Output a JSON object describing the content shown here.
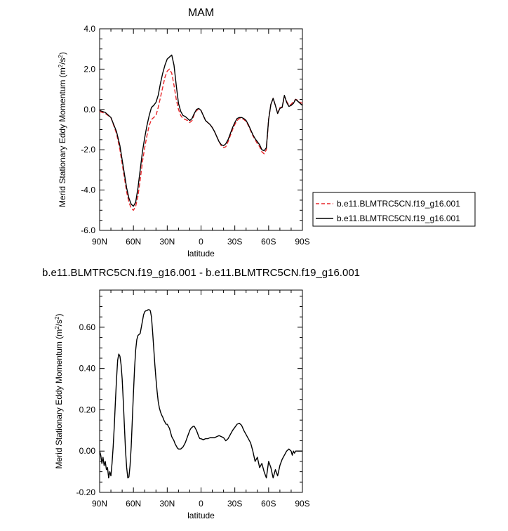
{
  "chart_data": [
    {
      "type": "line",
      "title": "MAM",
      "xlabel": "latitude",
      "ylabel": "Merid Stationary Eddy Momentum (m²/s²)",
      "ylabel_parts": {
        "main": "Merid Stationary Eddy Momentum (m",
        "sup1": "2",
        "mid": "/s",
        "sup2": "2",
        "end": ")"
      },
      "xlim": [
        -90,
        90
      ],
      "ylim": [
        -6,
        4
      ],
      "x_ticks": [
        -90,
        -60,
        -30,
        0,
        30,
        60,
        90
      ],
      "x_tick_labels": [
        "90N",
        "60N",
        "30N",
        "0",
        "30S",
        "60S",
        "90S"
      ],
      "y_ticks": [
        -6,
        -4,
        -2,
        0,
        2,
        4
      ],
      "y_tick_labels": [
        "-6.0",
        "-4.0",
        "-2.0",
        "0.0",
        "2.0",
        "4.0"
      ],
      "legend_position": "right",
      "series": [
        {
          "name": "b.e11.BLMTRC5CN.f19_g16.001",
          "color": "#e8262a",
          "dash": "dashed",
          "x": [
            -90,
            -85,
            -80,
            -75,
            -72,
            -70,
            -68,
            -66,
            -64,
            -62,
            -60,
            -58,
            -56,
            -54,
            -52,
            -50,
            -48,
            -46,
            -44,
            -42,
            -40,
            -38,
            -36,
            -34,
            -32,
            -30,
            -28,
            -26,
            -24,
            -22,
            -20,
            -18,
            -16,
            -14,
            -12,
            -10,
            -8,
            -6,
            -4,
            -2,
            0,
            2,
            4,
            6,
            8,
            10,
            12,
            14,
            16,
            18,
            20,
            22,
            24,
            26,
            28,
            30,
            32,
            34,
            36,
            38,
            40,
            42,
            44,
            46,
            48,
            50,
            52,
            54,
            56,
            58,
            60,
            62,
            64,
            66,
            68,
            70,
            72,
            74,
            76,
            78,
            80,
            82,
            84,
            86,
            88,
            90
          ],
          "y": [
            -0.1,
            -0.2,
            -0.4,
            -1.2,
            -2.0,
            -2.7,
            -3.4,
            -4.1,
            -4.6,
            -4.9,
            -5.0,
            -4.8,
            -4.3,
            -3.5,
            -2.6,
            -1.9,
            -1.3,
            -0.8,
            -0.5,
            -0.4,
            -0.3,
            0.1,
            0.6,
            1.1,
            1.6,
            1.9,
            2.0,
            1.8,
            1.2,
            0.5,
            0.0,
            -0.3,
            -0.45,
            -0.5,
            -0.55,
            -0.65,
            -0.55,
            -0.25,
            -0.05,
            0.0,
            -0.05,
            -0.3,
            -0.55,
            -0.65,
            -0.75,
            -0.9,
            -1.1,
            -1.35,
            -1.6,
            -1.8,
            -1.9,
            -1.85,
            -1.6,
            -1.3,
            -1.0,
            -0.75,
            -0.55,
            -0.45,
            -0.45,
            -0.5,
            -0.6,
            -0.8,
            -1.05,
            -1.3,
            -1.5,
            -1.7,
            -1.85,
            -2.1,
            -2.2,
            -2.0,
            -0.5,
            0.25,
            0.55,
            0.2,
            -0.2,
            0.1,
            0.1,
            0.65,
            0.4,
            0.2,
            0.25,
            0.4,
            0.5,
            0.45,
            0.35,
            0.3
          ]
        },
        {
          "name": "b.e11.BLMTRC5CN.f19_g16.001",
          "color": "#000000",
          "dash": "solid",
          "x": [
            -90,
            -85,
            -80,
            -75,
            -72,
            -70,
            -68,
            -66,
            -64,
            -62,
            -60,
            -58,
            -56,
            -54,
            -52,
            -50,
            -48,
            -46,
            -44,
            -42,
            -40,
            -38,
            -36,
            -34,
            -32,
            -30,
            -28,
            -26,
            -24,
            -22,
            -20,
            -18,
            -16,
            -14,
            -12,
            -10,
            -8,
            -6,
            -4,
            -2,
            0,
            2,
            4,
            6,
            8,
            10,
            12,
            14,
            16,
            18,
            20,
            22,
            24,
            26,
            28,
            30,
            32,
            34,
            36,
            38,
            40,
            42,
            44,
            46,
            48,
            50,
            52,
            54,
            56,
            58,
            60,
            62,
            64,
            66,
            68,
            70,
            72,
            74,
            76,
            78,
            80,
            82,
            84,
            86,
            88,
            90
          ],
          "y": [
            -0.05,
            -0.15,
            -0.4,
            -1.1,
            -1.8,
            -2.5,
            -3.2,
            -3.9,
            -4.4,
            -4.7,
            -4.8,
            -4.6,
            -3.9,
            -3.0,
            -2.1,
            -1.4,
            -0.8,
            -0.3,
            0.1,
            0.2,
            0.35,
            0.7,
            1.3,
            1.8,
            2.2,
            2.5,
            2.6,
            2.7,
            2.2,
            1.2,
            0.3,
            -0.1,
            -0.3,
            -0.35,
            -0.45,
            -0.55,
            -0.45,
            -0.2,
            0.0,
            0.05,
            -0.05,
            -0.3,
            -0.55,
            -0.65,
            -0.75,
            -0.9,
            -1.1,
            -1.35,
            -1.6,
            -1.75,
            -1.8,
            -1.7,
            -1.5,
            -1.2,
            -0.9,
            -0.65,
            -0.45,
            -0.4,
            -0.4,
            -0.45,
            -0.55,
            -0.75,
            -1.0,
            -1.25,
            -1.45,
            -1.6,
            -1.75,
            -2.0,
            -2.05,
            -1.9,
            -0.5,
            0.25,
            0.55,
            0.2,
            -0.2,
            0.05,
            0.1,
            0.7,
            0.35,
            0.15,
            0.2,
            0.3,
            0.5,
            0.4,
            0.3,
            0.2
          ]
        }
      ]
    },
    {
      "type": "line",
      "title": "b.e11.BLMTRC5CN.f19_g16.001 - b.e11.BLMTRC5CN.f19_g16.001",
      "xlabel": "latitude",
      "ylabel": "Merid Stationary Eddy Momentum (m²/s²)",
      "ylabel_parts": {
        "main": "Merid Stationary Eddy Momentum (m",
        "sup1": "2",
        "mid": "/s",
        "sup2": "2",
        "end": ")"
      },
      "xlim": [
        -90,
        90
      ],
      "ylim": [
        -0.2,
        0.78
      ],
      "x_ticks": [
        -90,
        -60,
        -30,
        0,
        30,
        60,
        90
      ],
      "x_tick_labels": [
        "90N",
        "60N",
        "30N",
        "0",
        "30S",
        "60S",
        "90S"
      ],
      "y_ticks": [
        -0.2,
        0.0,
        0.2,
        0.4,
        0.6
      ],
      "y_tick_labels": [
        "-0.20",
        "0.00",
        "0.20",
        "0.40",
        "0.60"
      ],
      "series": [
        {
          "color": "#000000",
          "dash": "solid",
          "x": [
            -90,
            -89,
            -88,
            -87,
            -86,
            -85,
            -84,
            -83,
            -82,
            -81,
            -80,
            -79,
            -78,
            -77,
            -76,
            -75,
            -74,
            -73,
            -72,
            -71,
            -70,
            -69,
            -68,
            -67,
            -66,
            -65,
            -64,
            -63,
            -62,
            -61,
            -60,
            -59,
            -58,
            -57,
            -56,
            -55,
            -54,
            -53,
            -52,
            -51,
            -50,
            -49,
            -48,
            -47,
            -46,
            -45,
            -44,
            -43,
            -42,
            -41,
            -40,
            -39,
            -38,
            -37,
            -36,
            -35,
            -34,
            -33,
            -32,
            -31,
            -30,
            -29,
            -28,
            -27,
            -26,
            -25,
            -24,
            -23,
            -22,
            -21,
            -20,
            -19,
            -18,
            -17,
            -16,
            -15,
            -14,
            -13,
            -12,
            -11,
            -10,
            -9,
            -8,
            -7,
            -6,
            -5,
            -4,
            -3,
            -2,
            -1,
            0,
            2,
            4,
            6,
            8,
            10,
            12,
            14,
            16,
            18,
            20,
            22,
            24,
            26,
            28,
            30,
            32,
            34,
            36,
            38,
            40,
            42,
            44,
            46,
            48,
            50,
            52,
            54,
            56,
            58,
            60,
            62,
            64,
            66,
            68,
            70,
            72,
            74,
            76,
            78,
            80,
            81,
            82,
            83,
            84,
            85,
            86,
            87,
            88,
            89,
            90
          ],
          "y": [
            0.0,
            -0.02,
            -0.06,
            -0.03,
            -0.07,
            -0.05,
            -0.09,
            -0.08,
            -0.13,
            -0.1,
            -0.12,
            -0.06,
            0.02,
            0.12,
            0.24,
            0.35,
            0.44,
            0.47,
            0.46,
            0.42,
            0.35,
            0.24,
            0.12,
            0.0,
            -0.08,
            -0.13,
            -0.125,
            -0.07,
            0.02,
            0.15,
            0.28,
            0.4,
            0.49,
            0.54,
            0.56,
            0.565,
            0.57,
            0.6,
            0.63,
            0.66,
            0.675,
            0.68,
            0.68,
            0.685,
            0.685,
            0.68,
            0.65,
            0.58,
            0.5,
            0.42,
            0.35,
            0.29,
            0.24,
            0.21,
            0.19,
            0.175,
            0.165,
            0.15,
            0.14,
            0.13,
            0.13,
            0.12,
            0.11,
            0.09,
            0.07,
            0.06,
            0.05,
            0.035,
            0.025,
            0.015,
            0.01,
            0.01,
            0.01,
            0.015,
            0.02,
            0.03,
            0.04,
            0.055,
            0.07,
            0.085,
            0.1,
            0.11,
            0.115,
            0.12,
            0.12,
            0.11,
            0.1,
            0.085,
            0.07,
            0.06,
            0.06,
            0.055,
            0.06,
            0.06,
            0.065,
            0.065,
            0.065,
            0.07,
            0.075,
            0.07,
            0.065,
            0.05,
            0.06,
            0.08,
            0.1,
            0.115,
            0.13,
            0.135,
            0.125,
            0.1,
            0.08,
            0.06,
            0.04,
            0.0,
            -0.05,
            -0.03,
            -0.08,
            -0.06,
            -0.1,
            -0.13,
            -0.05,
            -0.08,
            -0.13,
            -0.09,
            -0.12,
            -0.07,
            -0.04,
            -0.02,
            0.0,
            0.01,
            0.0,
            -0.02,
            0.0,
            -0.01,
            0.0,
            0.0,
            0.0,
            0.0,
            0.0,
            0.0,
            0.0
          ]
        }
      ]
    }
  ]
}
